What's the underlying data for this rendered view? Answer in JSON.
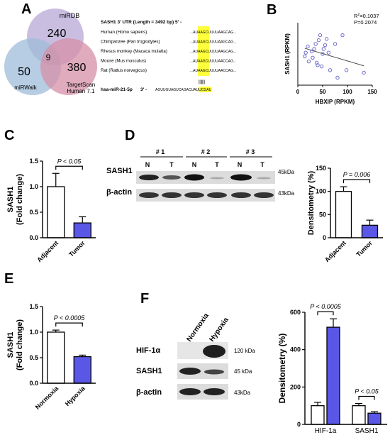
{
  "panels": {
    "A": {
      "label": "A",
      "venn": {
        "sets": [
          {
            "name": "miRDB",
            "color": "#b7a8d6"
          },
          {
            "name": "miRWalk",
            "color": "#9dbcd9"
          },
          {
            "name": "TargetScan Human 7.1",
            "color": "#d58fa7"
          }
        ],
        "counts": {
          "mirdb_only": "240",
          "mirwalk_only": "50",
          "targetscan_only": "380",
          "center": "9"
        },
        "ts_label_line1": "TargetScan",
        "ts_label_line2": "Human 7.1"
      },
      "utr": {
        "title": "SASH1 3' UTR (Length = 3492 bp)  5' -",
        "species": [
          {
            "name": "Human (Homo sapiens)",
            "seq_pre": "...",
            "seq_hl": "AUAAGC",
            "seq_post": "UUUUAAGCAG..."
          },
          {
            "name": "Chimpanzee (Pan troglodytes)",
            "seq_pre": "...",
            "seq_hl": "AUAAGC",
            "seq_post": "UUUUAAGCAG..."
          },
          {
            "name": "Rhesus monkey (Macaca mulatta)",
            "seq_pre": "...",
            "seq_hl": "AUAAGC",
            "seq_post": "UUUUAAGCAG..."
          },
          {
            "name": "Mouse (Mus musculus)",
            "seq_pre": "...",
            "seq_hl": "AUAAGC",
            "seq_post": "UUUUAACCAG..."
          },
          {
            "name": "Rat (Rattus norvegicus)",
            "seq_pre": "...",
            "seq_hl": "AUAAGC",
            "seq_post": "UUUUAACCAG..."
          }
        ],
        "mirna_name": "hsa-miR-21-5p",
        "mirna_prefix": "3' -",
        "mirna_seq": "AGUUGUAGUCAGAC",
        "mirna_hl": "UAUUCGA",
        "mirna_end": "U",
        "pairing": "|||||||"
      }
    },
    "B": {
      "label": "B",
      "r2_text": "R",
      "r2_sup": "2",
      "r2_val": "=0.1037",
      "p_text": "P=0.2074"
    },
    "C": {
      "label": "C",
      "pval": "P < 0.05"
    },
    "D": {
      "label": "D",
      "groups": [
        "# 1",
        "# 2",
        "# 3"
      ],
      "lanes": [
        "N",
        "T",
        "N",
        "T",
        "N",
        "T"
      ],
      "rows": [
        {
          "name": "SASH1",
          "kda": "45kDa"
        },
        {
          "name": "β-actin",
          "kda": "43kDa"
        }
      ],
      "pval": "P = 0.006"
    },
    "E": {
      "label": "E",
      "pval": "P < 0.0005"
    },
    "F": {
      "label": "F",
      "columns": [
        "Normoxia",
        "Hypoxia"
      ],
      "rows": [
        {
          "name": "HIF-1α",
          "kda": "120 kDa"
        },
        {
          "name": "SASH1",
          "kda": "45 kDa"
        },
        {
          "name": "β-actin",
          "kda": "43kDa"
        }
      ],
      "pval1": "P < 0.0005",
      "pval2": "P < 0.05"
    }
  },
  "chart_data": [
    {
      "id": "B",
      "type": "scatter",
      "title": "",
      "xlabel": "HBXIP (RPKM)",
      "ylabel": "SASH1 (RPKM)",
      "xlim": [
        0,
        150
      ],
      "ylim": [
        0,
        5
      ],
      "xticks": [
        "0",
        "50",
        "100",
        "150"
      ],
      "yticks": [],
      "point_color": "#6b6bc8",
      "points": [
        [
          14,
          2.3
        ],
        [
          16,
          2.6
        ],
        [
          20,
          3.1
        ],
        [
          22,
          1.9
        ],
        [
          28,
          2.7
        ],
        [
          30,
          2.2
        ],
        [
          33,
          2.9
        ],
        [
          36,
          3.3
        ],
        [
          38,
          1.8
        ],
        [
          40,
          1.6
        ],
        [
          42,
          3.6
        ],
        [
          45,
          4.0
        ],
        [
          48,
          1.5
        ],
        [
          50,
          2.5
        ],
        [
          52,
          2.9
        ],
        [
          55,
          3.2
        ],
        [
          58,
          3.7
        ],
        [
          62,
          2.6
        ],
        [
          65,
          1.2
        ],
        [
          75,
          3.3
        ],
        [
          80,
          0.6
        ],
        [
          90,
          4.0
        ],
        [
          98,
          1.2
        ],
        [
          133,
          1.0
        ]
      ],
      "fit": [
        [
          14,
          2.95
        ],
        [
          133,
          1.55
        ]
      ]
    },
    {
      "id": "C",
      "type": "bar",
      "title": "",
      "xlabel": "",
      "ylabel": "SASH1\n(Fold change)",
      "categories": [
        "Adjacent",
        "Tumor"
      ],
      "values": [
        1.0,
        0.29
      ],
      "errors": [
        0.26,
        0.12
      ],
      "ylim": [
        0,
        1.5
      ],
      "yticks": [
        "0.0",
        "0.5",
        "1.0",
        "1.5"
      ],
      "colors": [
        "#ffffff",
        "#5b57e6"
      ]
    },
    {
      "id": "D",
      "type": "bar",
      "title": "",
      "xlabel": "",
      "ylabel": "Densitometry (%)",
      "categories": [
        "Adjacent",
        "Tumor"
      ],
      "values": [
        100,
        27
      ],
      "errors": [
        10,
        11
      ],
      "ylim": [
        0,
        150
      ],
      "yticks": [
        "0",
        "50",
        "100",
        "150"
      ],
      "colors": [
        "#ffffff",
        "#5b57e6"
      ]
    },
    {
      "id": "E",
      "type": "bar",
      "title": "",
      "xlabel": "",
      "ylabel": "SASH1\n(Fold change)",
      "categories": [
        "Normoxia",
        "Hypoxia"
      ],
      "values": [
        1.0,
        0.52
      ],
      "errors": [
        0.04,
        0.03
      ],
      "ylim": [
        0,
        1.5
      ],
      "yticks": [
        "0.0",
        "0.5",
        "1.0",
        "1.5"
      ],
      "colors": [
        "#ffffff",
        "#5b57e6"
      ]
    },
    {
      "id": "F",
      "type": "bar",
      "title": "",
      "xlabel": "",
      "ylabel": "Densitometry (%)",
      "categories": [
        "HIF-1a",
        "SASH1"
      ],
      "series": [
        {
          "values": [
            100,
            100
          ],
          "errors": [
            18,
            12
          ],
          "color": "#ffffff"
        },
        {
          "values": [
            520,
            60
          ],
          "errors": [
            45,
            8
          ],
          "color": "#5b57e6"
        }
      ],
      "ylim": [
        0,
        600
      ],
      "yticks": [
        "0",
        "200",
        "400",
        "600"
      ]
    }
  ]
}
